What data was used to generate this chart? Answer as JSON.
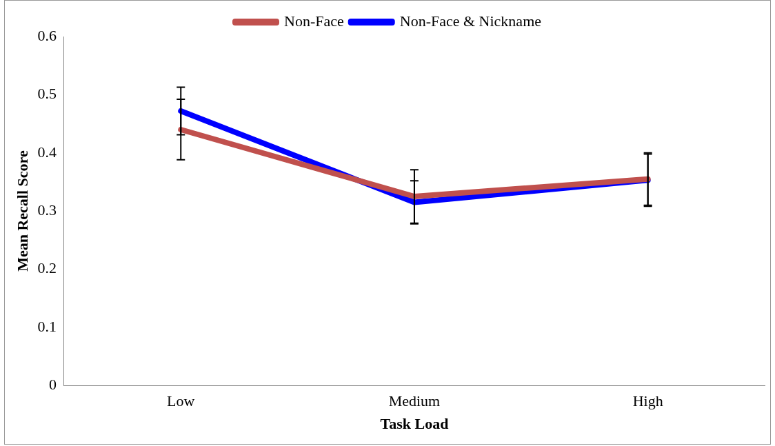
{
  "chart_data": {
    "type": "line",
    "xlabel": "Task Load",
    "ylabel": "Mean Recall Score",
    "categories": [
      "Low",
      "Medium",
      "High"
    ],
    "series": [
      {
        "name": "Non-Face",
        "color": "#c0504d",
        "values": [
          0.44,
          0.325,
          0.355
        ],
        "errors": [
          0.052,
          0.046,
          0.045
        ]
      },
      {
        "name": "Non-Face & Nickname",
        "color": "#0000ff",
        "values": [
          0.472,
          0.315,
          0.353
        ],
        "errors": [
          0.041,
          0.037,
          0.045
        ]
      }
    ],
    "ylim": [
      0,
      0.6
    ],
    "yticks": [
      0,
      0.1,
      0.2,
      0.3,
      0.4,
      0.5,
      0.6
    ],
    "grid": false,
    "legend": "top",
    "marker": "none"
  }
}
